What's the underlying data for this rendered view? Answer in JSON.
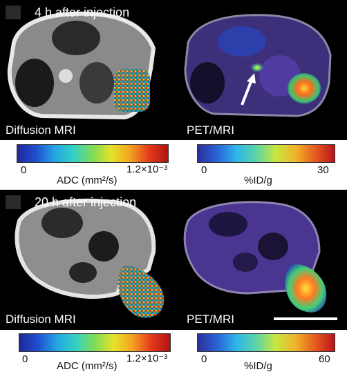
{
  "top": {
    "title": "4 h after injection",
    "left_label": "Diffusion MRI",
    "right_label": "PET/MRI"
  },
  "top_colorbars": {
    "adc": {
      "min": "0",
      "max": "1.2×10⁻³",
      "unit": "ADC (mm²/s)"
    },
    "pet": {
      "min": "0",
      "max": "30",
      "unit": "%ID/g"
    }
  },
  "bottom": {
    "title": "20 h after injection",
    "left_label": "Diffusion MRI",
    "right_label": "PET/MRI"
  },
  "bottom_colorbars": {
    "adc": {
      "min": "0",
      "max": "1.2×10⁻³",
      "unit": "ADC (mm²/s)"
    },
    "pet": {
      "min": "0",
      "max": "60",
      "unit": "%ID/g"
    }
  }
}
